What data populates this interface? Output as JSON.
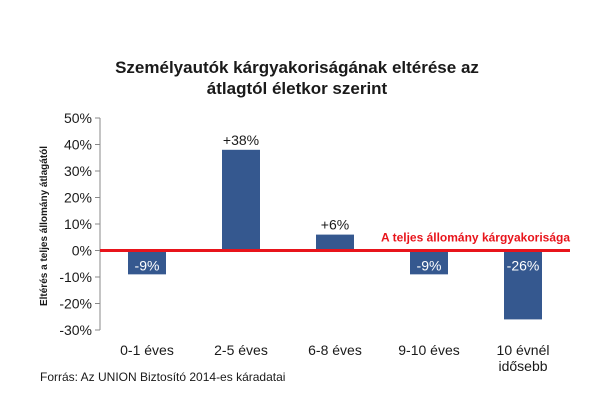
{
  "chart_data": {
    "type": "bar",
    "title_lines": [
      "Személyautók kárgyakoriságának eltérése az",
      "átlagtól életkor szerint"
    ],
    "ylabel": "Eltérés a teljes állomány átlagától",
    "categories": [
      [
        "0-1 éves"
      ],
      [
        "2-5 éves"
      ],
      [
        "6-8 éves"
      ],
      [
        "9-10 éves"
      ],
      [
        "10 évnél",
        "idősebb"
      ]
    ],
    "values": [
      -9,
      38,
      6,
      -9,
      -26
    ],
    "data_labels": [
      "-9%",
      "+38%",
      "+6%",
      "-9%",
      "-26%"
    ],
    "y_ticks": [
      50,
      40,
      30,
      20,
      10,
      0,
      -10,
      -20,
      -30
    ],
    "y_tick_labels": [
      "50%",
      "40%",
      "30%",
      "20%",
      "10%",
      "0%",
      "-10%",
      "-20%",
      "-30%"
    ],
    "ylim": [
      -30,
      50
    ],
    "grid": false,
    "bar_color": "#35588f",
    "reference_line": {
      "value": 0,
      "label": "A teljes állomány kárgyakorisága",
      "color": "#e8141b"
    },
    "source": "Forrás: Az UNION Biztosító 2014-es káradatai"
  }
}
